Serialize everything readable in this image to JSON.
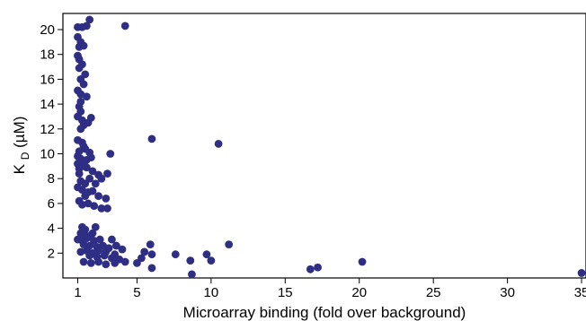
{
  "chart_data": {
    "type": "scatter",
    "xlabel": "Microarray binding (fold over background)",
    "ylabel": {
      "main": "K",
      "sub": "D",
      "unit": " (µM)"
    },
    "xlim": [
      0,
      35.3
    ],
    "ylim": [
      0,
      21.3
    ],
    "xticks": [
      1,
      5,
      10,
      15,
      20,
      25,
      30,
      35
    ],
    "yticks": [
      2,
      4,
      6,
      8,
      10,
      12,
      14,
      16,
      18,
      20
    ],
    "grid": false,
    "legend": "none",
    "marker_color": "#2e2e85",
    "points": [
      [
        1.0,
        20.2
      ],
      [
        1.3,
        20.2
      ],
      [
        1.6,
        20.3
      ],
      [
        1.8,
        20.8
      ],
      [
        4.2,
        20.3
      ],
      [
        1.0,
        19.4
      ],
      [
        1.2,
        19.0
      ],
      [
        1.1,
        18.6
      ],
      [
        1.4,
        18.7
      ],
      [
        1.0,
        17.9
      ],
      [
        1.1,
        17.6
      ],
      [
        1.3,
        17.2
      ],
      [
        1.1,
        16.9
      ],
      [
        1.5,
        16.4
      ],
      [
        1.2,
        16.0
      ],
      [
        1.4,
        15.6
      ],
      [
        1.0,
        15.1
      ],
      [
        1.2,
        14.8
      ],
      [
        1.6,
        14.6
      ],
      [
        1.2,
        14.2
      ],
      [
        1.1,
        13.8
      ],
      [
        1.2,
        13.4
      ],
      [
        1.0,
        13.0
      ],
      [
        1.3,
        12.7
      ],
      [
        1.9,
        12.9
      ],
      [
        1.7,
        12.5
      ],
      [
        1.4,
        12.3
      ],
      [
        1.2,
        12.0
      ],
      [
        1.0,
        11.1
      ],
      [
        1.3,
        10.9
      ],
      [
        1.4,
        10.6
      ],
      [
        1.5,
        10.4
      ],
      [
        1.1,
        10.2
      ],
      [
        1.8,
        10.1
      ],
      [
        3.2,
        10.0
      ],
      [
        6.0,
        11.2
      ],
      [
        10.5,
        10.8
      ],
      [
        1.0,
        9.8
      ],
      [
        1.2,
        9.6
      ],
      [
        1.4,
        9.4
      ],
      [
        1.6,
        9.5
      ],
      [
        1.9,
        9.7
      ],
      [
        1.0,
        9.2
      ],
      [
        1.3,
        9.0
      ],
      [
        1.1,
        8.8
      ],
      [
        1.6,
        8.9
      ],
      [
        2.0,
        8.6
      ],
      [
        2.4,
        8.3
      ],
      [
        3.0,
        8.4
      ],
      [
        1.1,
        8.4
      ],
      [
        1.8,
        8.0
      ],
      [
        2.6,
        8.0
      ],
      [
        1.2,
        7.8
      ],
      [
        1.5,
        7.6
      ],
      [
        2.2,
        7.6
      ],
      [
        1.0,
        7.3
      ],
      [
        1.3,
        7.1
      ],
      [
        1.7,
        6.9
      ],
      [
        2.0,
        7.0
      ],
      [
        1.5,
        6.6
      ],
      [
        2.4,
        6.6
      ],
      [
        2.9,
        6.4
      ],
      [
        1.1,
        6.2
      ],
      [
        1.7,
        6.0
      ],
      [
        1.3,
        5.9
      ],
      [
        2.1,
        5.8
      ],
      [
        2.6,
        5.6
      ],
      [
        3.0,
        5.6
      ],
      [
        1.3,
        4.1
      ],
      [
        1.5,
        3.9
      ],
      [
        2.2,
        4.1
      ],
      [
        1.2,
        3.6
      ],
      [
        1.5,
        3.5
      ],
      [
        1.8,
        3.3
      ],
      [
        2.0,
        3.6
      ],
      [
        1.0,
        3.1
      ],
      [
        1.3,
        3.0
      ],
      [
        1.6,
        3.2
      ],
      [
        2.1,
        3.0
      ],
      [
        2.5,
        3.1
      ],
      [
        3.3,
        3.1
      ],
      [
        1.4,
        2.7
      ],
      [
        1.8,
        2.6
      ],
      [
        2.3,
        2.5
      ],
      [
        2.7,
        2.6
      ],
      [
        3.1,
        2.4
      ],
      [
        3.6,
        2.6
      ],
      [
        4.0,
        2.3
      ],
      [
        1.2,
        2.1
      ],
      [
        1.6,
        2.2
      ],
      [
        2.0,
        2.0
      ],
      [
        2.4,
        2.2
      ],
      [
        2.9,
        2.1
      ],
      [
        3.5,
        1.9
      ],
      [
        5.9,
        2.7
      ],
      [
        5.5,
        2.1
      ],
      [
        1.8,
        1.8
      ],
      [
        2.3,
        1.7
      ],
      [
        2.8,
        1.8
      ],
      [
        3.3,
        1.6
      ],
      [
        3.8,
        1.5
      ],
      [
        5.3,
        1.6
      ],
      [
        6.0,
        1.9
      ],
      [
        7.6,
        1.9
      ],
      [
        9.7,
        1.9
      ],
      [
        11.2,
        2.7
      ],
      [
        1.4,
        1.3
      ],
      [
        1.9,
        1.2
      ],
      [
        2.4,
        1.3
      ],
      [
        2.9,
        1.1
      ],
      [
        3.5,
        1.2
      ],
      [
        4.2,
        1.3
      ],
      [
        5.0,
        1.2
      ],
      [
        6.0,
        0.8
      ],
      [
        8.6,
        1.4
      ],
      [
        10.0,
        1.4
      ],
      [
        8.7,
        0.3
      ],
      [
        16.7,
        0.7
      ],
      [
        17.2,
        0.85
      ],
      [
        20.2,
        1.3
      ],
      [
        35.0,
        0.4
      ]
    ]
  }
}
